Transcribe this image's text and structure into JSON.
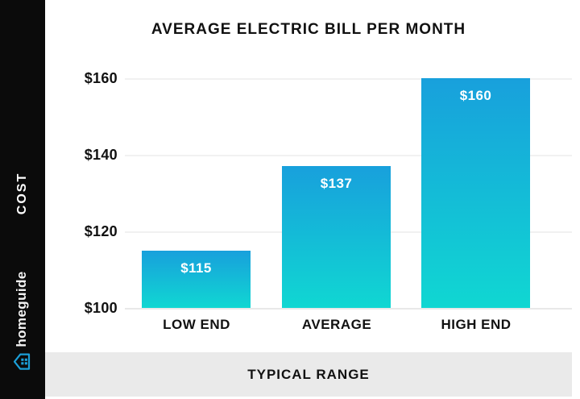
{
  "sidebar": {
    "cost_label": "COST",
    "brand": "homeguide",
    "background": "#0b0b0b",
    "logo_color": "#1b9fd8"
  },
  "chart_data": {
    "type": "bar",
    "title": "AVERAGE ELECTRIC BILL PER MONTH",
    "categories": [
      "LOW END",
      "AVERAGE",
      "HIGH END"
    ],
    "values": [
      115,
      137,
      160
    ],
    "value_labels": [
      "$115",
      "$137",
      "$160"
    ],
    "y_tick_labels": [
      "$160",
      "$140",
      "$120",
      "$100"
    ],
    "ylim": [
      100,
      160
    ],
    "xlabel": "",
    "ylabel": "",
    "grid": true,
    "legend": false,
    "bar_color_top": "#18a0dc",
    "bar_color_bottom": "#10d7d2",
    "value_label_color": "#ffffff"
  },
  "footer": {
    "label": "TYPICAL RANGE",
    "background": "#eaeaea"
  }
}
